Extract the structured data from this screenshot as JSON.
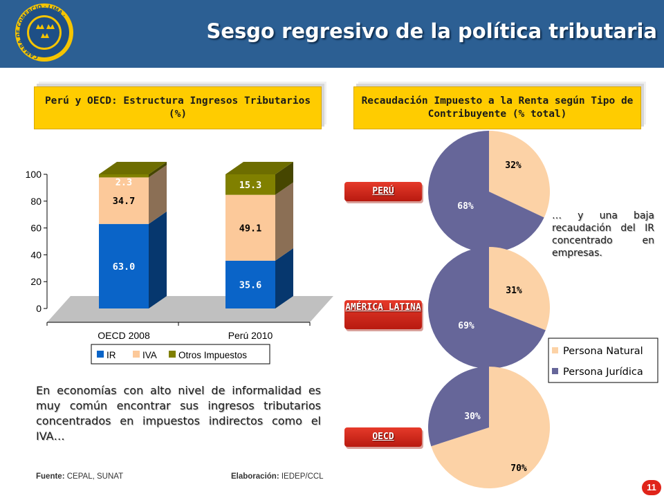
{
  "header": {
    "title": "Sesgo regresivo de la política tributaria",
    "logo_text": "CAMARA DE COMERCIO · LIMA ·"
  },
  "left_panel": {
    "title": "Perú y OECD: Estructura Ingresos Tributarios (%)"
  },
  "right_panel": {
    "title": "Recaudación Impuesto a la Renta según Tipo de Contribuyente (% total)"
  },
  "regions": {
    "peru": "PERÚ",
    "america_latina": "AMÉRICA LATINA",
    "oecd": "OECD"
  },
  "aside_note": "… y una baja recaudación del IR concentrado en empresas.",
  "main_note": "En economías con alto nivel de informalidad es muy común encontrar sus ingresos tributarios concentrados en impuestos indirectos como el IVA…",
  "footer": {
    "source_label": "Fuente:",
    "source_value": "CEPAL, SUNAT",
    "elab_label": "Elaboración:",
    "elab_value": "IEDEP/CCL"
  },
  "page_number": "11",
  "chart_data": [
    {
      "type": "bar",
      "stacked": true,
      "categories": [
        "OECD 2008",
        "Perú 2010"
      ],
      "series": [
        {
          "name": "IR",
          "values": [
            63.0,
            35.6
          ],
          "labels": [
            "63.0",
            "35.6"
          ],
          "color": "#0a64c8"
        },
        {
          "name": "IVA",
          "values": [
            34.7,
            49.1
          ],
          "labels": [
            "34.7",
            "49.1"
          ],
          "color": "#fcc99a"
        },
        {
          "name": "Otros Impuestos",
          "values": [
            2.3,
            15.3
          ],
          "labels": [
            "2.3",
            "15.3"
          ],
          "color": "#808000"
        }
      ],
      "ylim": [
        0,
        100
      ],
      "yticks": [
        "0",
        "20",
        "40",
        "60",
        "80",
        "100"
      ],
      "legend": "bottom",
      "grid": false
    },
    {
      "type": "pie",
      "region": "PERÚ",
      "slices": [
        {
          "name": "Persona Natural",
          "value": 32,
          "label": "32%",
          "color": "#fcd2a6"
        },
        {
          "name": "Persona Jurídica",
          "value": 68,
          "label": "68%",
          "color": "#666699"
        }
      ]
    },
    {
      "type": "pie",
      "region": "AMÉRICA LATINA",
      "slices": [
        {
          "name": "Persona Natural",
          "value": 31,
          "label": "31%",
          "color": "#fcd2a6"
        },
        {
          "name": "Persona Jurídica",
          "value": 69,
          "label": "69%",
          "color": "#666699"
        }
      ]
    },
    {
      "type": "pie",
      "region": "OECD",
      "slices": [
        {
          "name": "Persona Natural",
          "value": 70,
          "label": "70%",
          "color": "#fcd2a6"
        },
        {
          "name": "Persona Jurídica",
          "value": 30,
          "label": "30%",
          "color": "#666699"
        }
      ]
    }
  ],
  "pie_legend": [
    {
      "label": "Persona Natural",
      "color": "#fcd2a6"
    },
    {
      "label": "Persona Jurídica",
      "color": "#666699"
    }
  ]
}
